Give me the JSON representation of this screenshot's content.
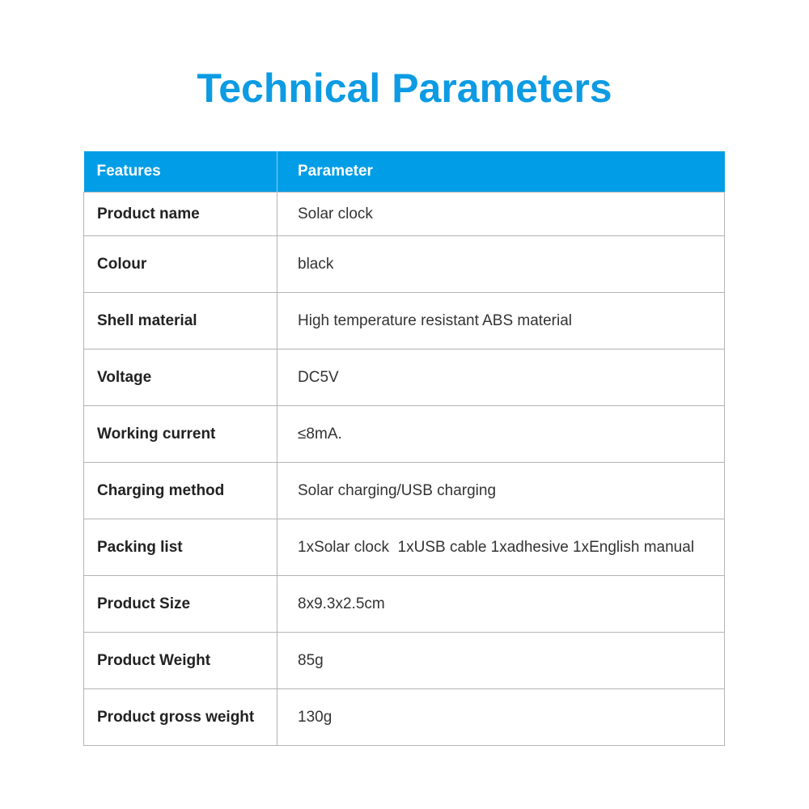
{
  "title": "Technical Parameters",
  "colors": {
    "accent": "#019de6"
  },
  "table": {
    "headers": [
      "Features",
      "Parameter"
    ],
    "rows": [
      {
        "feature": "Product name",
        "parameter": "Solar clock"
      },
      {
        "feature": "Colour",
        "parameter": "black"
      },
      {
        "feature": "Shell material",
        "parameter": "High temperature resistant ABS material"
      },
      {
        "feature": "Voltage",
        "parameter": "DC5V"
      },
      {
        "feature": "Working current",
        "parameter": "≤8mA."
      },
      {
        "feature": "Charging method",
        "parameter": "Solar charging/USB charging"
      },
      {
        "feature": "Packing list",
        "parameter": "1xSolar clock  1xUSB cable 1xadhesive 1xEnglish manual"
      },
      {
        "feature": "Product Size",
        "parameter": "8x9.3x2.5cm"
      },
      {
        "feature": "Product Weight",
        "parameter": "85g"
      },
      {
        "feature": "Product gross weight",
        "parameter": "130g"
      }
    ]
  }
}
